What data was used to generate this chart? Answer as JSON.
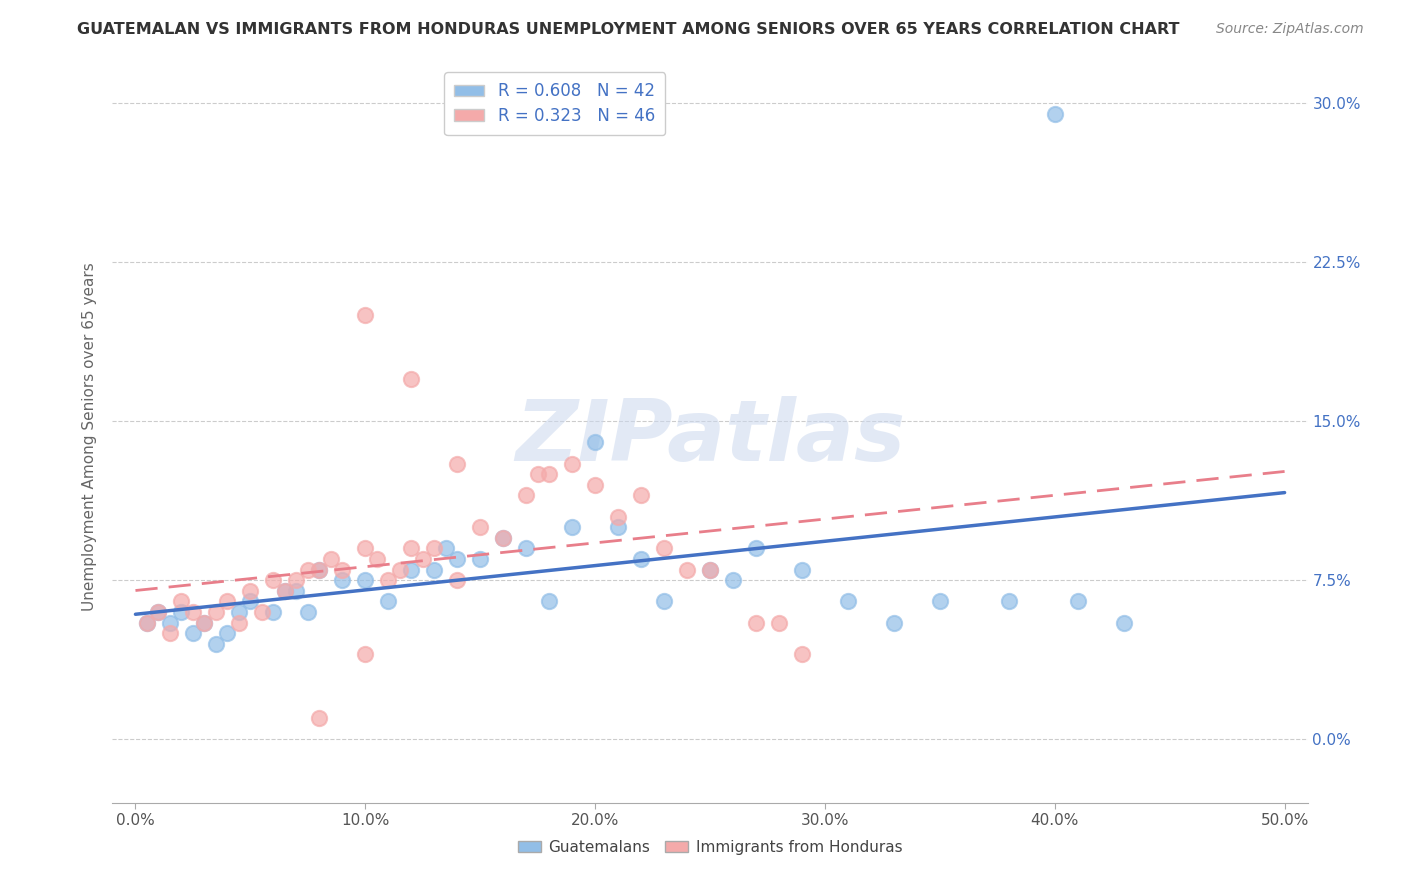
{
  "title": "GUATEMALAN VS IMMIGRANTS FROM HONDURAS UNEMPLOYMENT AMONG SENIORS OVER 65 YEARS CORRELATION CHART",
  "source": "Source: ZipAtlas.com",
  "xlabel_ticks": [
    "0.0%",
    "10.0%",
    "20.0%",
    "30.0%",
    "40.0%",
    "50.0%"
  ],
  "xlabel_vals": [
    0.0,
    0.1,
    0.2,
    0.3,
    0.4,
    0.5
  ],
  "ylabel_ticks": [
    "0.0%",
    "7.5%",
    "15.0%",
    "22.5%",
    "30.0%"
  ],
  "ylabel_vals": [
    0.0,
    0.075,
    0.15,
    0.225,
    0.3
  ],
  "ylabel_label": "Unemployment Among Seniors over 65 years",
  "legend_label1": "Guatemalans",
  "legend_label2": "Immigrants from Honduras",
  "R1": 0.608,
  "N1": 42,
  "R2": 0.323,
  "N2": 46,
  "color_blue": "#92BEE7",
  "color_pink": "#F4AAAA",
  "line_blue": "#4472C4",
  "line_pink_solid": "#E87E8A",
  "watermark_color": "#CBD8EE",
  "blue_x": [
    0.005,
    0.01,
    0.015,
    0.02,
    0.025,
    0.03,
    0.035,
    0.04,
    0.045,
    0.05,
    0.06,
    0.065,
    0.07,
    0.075,
    0.08,
    0.09,
    0.1,
    0.11,
    0.12,
    0.13,
    0.135,
    0.14,
    0.15,
    0.16,
    0.17,
    0.18,
    0.19,
    0.2,
    0.21,
    0.22,
    0.23,
    0.25,
    0.26,
    0.27,
    0.29,
    0.31,
    0.33,
    0.35,
    0.38,
    0.41,
    0.43,
    0.4
  ],
  "blue_y": [
    0.055,
    0.06,
    0.055,
    0.06,
    0.05,
    0.055,
    0.045,
    0.05,
    0.06,
    0.065,
    0.06,
    0.07,
    0.07,
    0.06,
    0.08,
    0.075,
    0.075,
    0.065,
    0.08,
    0.08,
    0.09,
    0.085,
    0.085,
    0.095,
    0.09,
    0.065,
    0.1,
    0.14,
    0.1,
    0.085,
    0.065,
    0.08,
    0.075,
    0.09,
    0.08,
    0.065,
    0.055,
    0.065,
    0.065,
    0.065,
    0.055,
    0.295
  ],
  "pink_x": [
    0.005,
    0.01,
    0.015,
    0.02,
    0.025,
    0.03,
    0.035,
    0.04,
    0.045,
    0.05,
    0.055,
    0.06,
    0.065,
    0.07,
    0.075,
    0.08,
    0.085,
    0.09,
    0.1,
    0.105,
    0.11,
    0.115,
    0.12,
    0.125,
    0.13,
    0.14,
    0.15,
    0.16,
    0.17,
    0.175,
    0.18,
    0.19,
    0.2,
    0.21,
    0.22,
    0.23,
    0.24,
    0.25,
    0.27,
    0.28,
    0.29,
    0.1,
    0.12,
    0.14,
    0.08,
    0.1
  ],
  "pink_y": [
    0.055,
    0.06,
    0.05,
    0.065,
    0.06,
    0.055,
    0.06,
    0.065,
    0.055,
    0.07,
    0.06,
    0.075,
    0.07,
    0.075,
    0.08,
    0.08,
    0.085,
    0.08,
    0.09,
    0.085,
    0.075,
    0.08,
    0.09,
    0.085,
    0.09,
    0.075,
    0.1,
    0.095,
    0.115,
    0.125,
    0.125,
    0.13,
    0.12,
    0.105,
    0.115,
    0.09,
    0.08,
    0.08,
    0.055,
    0.055,
    0.04,
    0.2,
    0.17,
    0.13,
    0.01,
    0.04
  ]
}
